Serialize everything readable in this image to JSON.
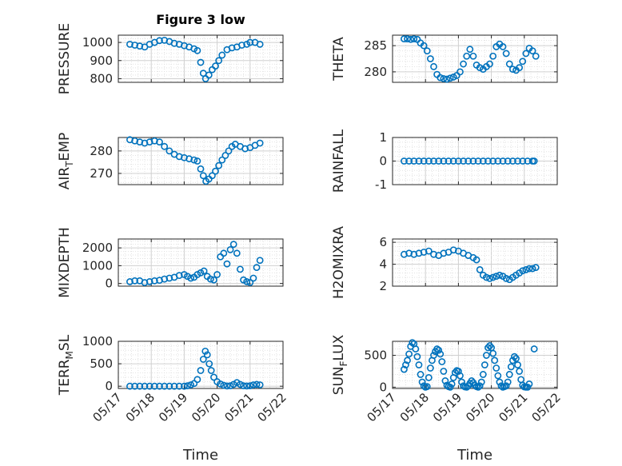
{
  "figure_title": "Figure 3 low",
  "xlabel": "Time",
  "x_ticks": [
    "05/17",
    "05/18",
    "05/19",
    "05/20",
    "05/21",
    "05/22"
  ],
  "marker_color": "#0072BD",
  "chart_data": [
    {
      "type": "scatter",
      "ylabel": "PRESSURE",
      "xlim": [
        17,
        22
      ],
      "ylim": [
        780,
        1040
      ],
      "yticks": [
        800,
        900,
        1000
      ],
      "x": [
        17.35,
        17.5,
        17.65,
        17.8,
        17.95,
        18.1,
        18.25,
        18.4,
        18.55,
        18.7,
        18.85,
        19.0,
        19.15,
        19.3,
        19.4,
        19.5,
        19.58,
        19.65,
        19.75,
        19.85,
        19.95,
        20.05,
        20.15,
        20.3,
        20.45,
        20.6,
        20.75,
        20.9,
        21.0,
        21.15,
        21.3
      ],
      "y": [
        990,
        985,
        980,
        975,
        990,
        1000,
        1010,
        1012,
        1005,
        995,
        990,
        982,
        975,
        965,
        955,
        890,
        830,
        800,
        820,
        850,
        870,
        900,
        930,
        960,
        970,
        975,
        985,
        990,
        1000,
        1000,
        990
      ]
    },
    {
      "type": "scatter",
      "ylabel": "THETA",
      "xlim": [
        17,
        22
      ],
      "ylim": [
        278,
        287
      ],
      "yticks": [
        280,
        285
      ],
      "x": [
        17.35,
        17.45,
        17.55,
        17.65,
        17.75,
        17.85,
        17.95,
        18.05,
        18.15,
        18.25,
        18.35,
        18.45,
        18.55,
        18.65,
        18.75,
        18.85,
        18.95,
        19.05,
        19.15,
        19.25,
        19.35,
        19.45,
        19.55,
        19.65,
        19.75,
        19.85,
        19.95,
        20.05,
        20.15,
        20.25,
        20.35,
        20.45,
        20.55,
        20.65,
        20.75,
        20.85,
        20.95,
        21.05,
        21.15,
        21.25,
        21.35
      ],
      "y": [
        286.3,
        286.3,
        286.2,
        286.3,
        286.2,
        285.5,
        285.0,
        284.0,
        282.5,
        281.0,
        279.5,
        278.9,
        278.7,
        278.6,
        278.8,
        279.0,
        279.3,
        280.0,
        281.5,
        283.0,
        284.3,
        283.0,
        281.3,
        280.8,
        280.5,
        281.0,
        281.5,
        283.0,
        284.8,
        285.3,
        284.8,
        283.5,
        281.5,
        280.5,
        280.3,
        280.8,
        282.0,
        283.5,
        284.5,
        284.0,
        283.0
      ]
    },
    {
      "type": "scatter",
      "ylabel": "AIR_TEMP",
      "xlim": [
        17,
        22
      ],
      "ylim": [
        265,
        286
      ],
      "yticks": [
        270,
        280
      ],
      "x": [
        17.35,
        17.5,
        17.65,
        17.8,
        17.95,
        18.1,
        18.25,
        18.4,
        18.55,
        18.7,
        18.85,
        19.0,
        19.15,
        19.3,
        19.4,
        19.5,
        19.58,
        19.66,
        19.75,
        19.85,
        19.95,
        20.05,
        20.15,
        20.25,
        20.35,
        20.45,
        20.55,
        20.7,
        20.85,
        21.0,
        21.15,
        21.3
      ],
      "y": [
        285,
        284.5,
        284,
        283.5,
        284,
        284.5,
        284,
        282,
        280,
        278.5,
        277.5,
        277,
        276.5,
        276,
        275.5,
        272,
        269,
        266.5,
        267.5,
        269,
        271,
        273.5,
        276,
        278,
        280,
        282,
        283,
        282,
        281,
        281.5,
        282.5,
        283.5
      ]
    },
    {
      "type": "scatter",
      "ylabel": "RAINFALL",
      "xlim": [
        17,
        22
      ],
      "ylim": [
        -1,
        1
      ],
      "yticks": [
        -1,
        0,
        1
      ],
      "x": [
        17.35,
        17.5,
        17.65,
        17.8,
        17.95,
        18.1,
        18.25,
        18.4,
        18.55,
        18.7,
        18.85,
        19.0,
        19.15,
        19.3,
        19.45,
        19.6,
        19.75,
        19.9,
        20.05,
        20.2,
        20.35,
        20.5,
        20.65,
        20.8,
        20.95,
        21.1,
        21.25,
        21.3
      ],
      "y": [
        0,
        0,
        0,
        0,
        0,
        0,
        0,
        0,
        0,
        0,
        0,
        0,
        0,
        0,
        0,
        0,
        0,
        0,
        0,
        0,
        0,
        0,
        0,
        0,
        0,
        0,
        0,
        0
      ]
    },
    {
      "type": "scatter",
      "ylabel": "MIXDEPTH",
      "xlim": [
        17,
        22
      ],
      "ylim": [
        -150,
        2500
      ],
      "yticks": [
        0,
        1000,
        2000
      ],
      "x": [
        17.35,
        17.5,
        17.65,
        17.8,
        17.95,
        18.1,
        18.25,
        18.4,
        18.55,
        18.7,
        18.85,
        19.0,
        19.1,
        19.2,
        19.3,
        19.4,
        19.5,
        19.6,
        19.7,
        19.8,
        19.9,
        20.0,
        20.1,
        20.2,
        20.3,
        20.4,
        20.5,
        20.6,
        20.7,
        20.8,
        20.9,
        21.0,
        21.1,
        21.2,
        21.3
      ],
      "y": [
        100,
        150,
        150,
        50,
        100,
        150,
        180,
        250,
        300,
        350,
        450,
        500,
        400,
        300,
        350,
        500,
        600,
        700,
        400,
        250,
        200,
        500,
        1500,
        1700,
        1100,
        1900,
        2200,
        1700,
        800,
        200,
        100,
        50,
        300,
        900,
        1300
      ]
    },
    {
      "type": "scatter",
      "ylabel": "H2OMIXRA",
      "xlim": [
        17,
        22
      ],
      "ylim": [
        2,
        6.3
      ],
      "yticks": [
        2,
        4,
        6
      ],
      "x": [
        17.35,
        17.5,
        17.65,
        17.8,
        17.95,
        18.1,
        18.25,
        18.4,
        18.55,
        18.7,
        18.85,
        19.0,
        19.15,
        19.3,
        19.45,
        19.55,
        19.65,
        19.75,
        19.85,
        19.95,
        20.05,
        20.15,
        20.25,
        20.35,
        20.45,
        20.55,
        20.65,
        20.75,
        20.85,
        20.95,
        21.05,
        21.15,
        21.25,
        21.35
      ],
      "y": [
        4.9,
        5.0,
        4.9,
        5.0,
        5.1,
        5.2,
        4.9,
        4.8,
        5.0,
        5.1,
        5.3,
        5.2,
        5.0,
        4.8,
        4.6,
        4.4,
        3.5,
        3.0,
        2.8,
        2.7,
        2.8,
        2.9,
        3.0,
        2.9,
        2.7,
        2.6,
        2.8,
        3.0,
        3.2,
        3.4,
        3.5,
        3.6,
        3.6,
        3.7
      ]
    },
    {
      "type": "scatter",
      "ylabel": "TERR_MSL",
      "xlim": [
        17,
        22
      ],
      "ylim": [
        -50,
        1000
      ],
      "yticks": [
        0,
        500,
        1000
      ],
      "x": [
        17.35,
        17.5,
        17.65,
        17.8,
        17.95,
        18.1,
        18.25,
        18.4,
        18.55,
        18.7,
        18.85,
        19.0,
        19.1,
        19.2,
        19.3,
        19.4,
        19.5,
        19.58,
        19.64,
        19.7,
        19.76,
        19.82,
        19.9,
        20.0,
        20.1,
        20.2,
        20.3,
        20.4,
        20.5,
        20.6,
        20.7,
        20.8,
        20.9,
        21.0,
        21.1,
        21.2,
        21.3
      ],
      "y": [
        0,
        0,
        0,
        0,
        0,
        0,
        0,
        0,
        0,
        0,
        0,
        0,
        10,
        30,
        60,
        150,
        350,
        600,
        780,
        700,
        500,
        350,
        200,
        100,
        50,
        20,
        5,
        10,
        40,
        80,
        40,
        10,
        5,
        10,
        30,
        40,
        30
      ]
    },
    {
      "type": "scatter",
      "ylabel": "SUN_FLUX",
      "xlim": [
        17,
        22
      ],
      "ylim": [
        -20,
        720
      ],
      "yticks": [
        0,
        500
      ],
      "x": [
        17.35,
        17.4,
        17.45,
        17.5,
        17.55,
        17.6,
        17.65,
        17.7,
        17.75,
        17.8,
        17.85,
        17.9,
        17.95,
        18.0,
        18.05,
        18.1,
        18.15,
        18.2,
        18.25,
        18.3,
        18.35,
        18.4,
        18.45,
        18.5,
        18.55,
        18.6,
        18.65,
        18.7,
        18.75,
        18.8,
        18.85,
        18.9,
        18.95,
        19.0,
        19.05,
        19.1,
        19.15,
        19.2,
        19.25,
        19.3,
        19.35,
        19.4,
        19.45,
        19.5,
        19.55,
        19.6,
        19.65,
        19.7,
        19.75,
        19.8,
        19.85,
        19.9,
        19.95,
        20.0,
        20.05,
        20.1,
        20.15,
        20.2,
        20.25,
        20.3,
        20.35,
        20.4,
        20.45,
        20.5,
        20.55,
        20.6,
        20.65,
        20.7,
        20.75,
        20.8,
        20.85,
        20.9,
        20.95,
        21.0,
        21.05,
        21.1,
        21.15,
        21.3
      ],
      "y": [
        280,
        350,
        420,
        520,
        640,
        700,
        680,
        600,
        480,
        350,
        200,
        80,
        20,
        0,
        10,
        150,
        300,
        420,
        500,
        560,
        600,
        580,
        520,
        400,
        250,
        100,
        30,
        10,
        0,
        50,
        150,
        230,
        260,
        250,
        180,
        80,
        20,
        5,
        0,
        20,
        60,
        100,
        70,
        30,
        10,
        0,
        20,
        80,
        200,
        350,
        500,
        620,
        650,
        620,
        530,
        420,
        300,
        180,
        80,
        20,
        0,
        10,
        20,
        80,
        200,
        320,
        420,
        480,
        450,
        350,
        250,
        120,
        30,
        5,
        0,
        0,
        50,
        600
      ]
    }
  ]
}
